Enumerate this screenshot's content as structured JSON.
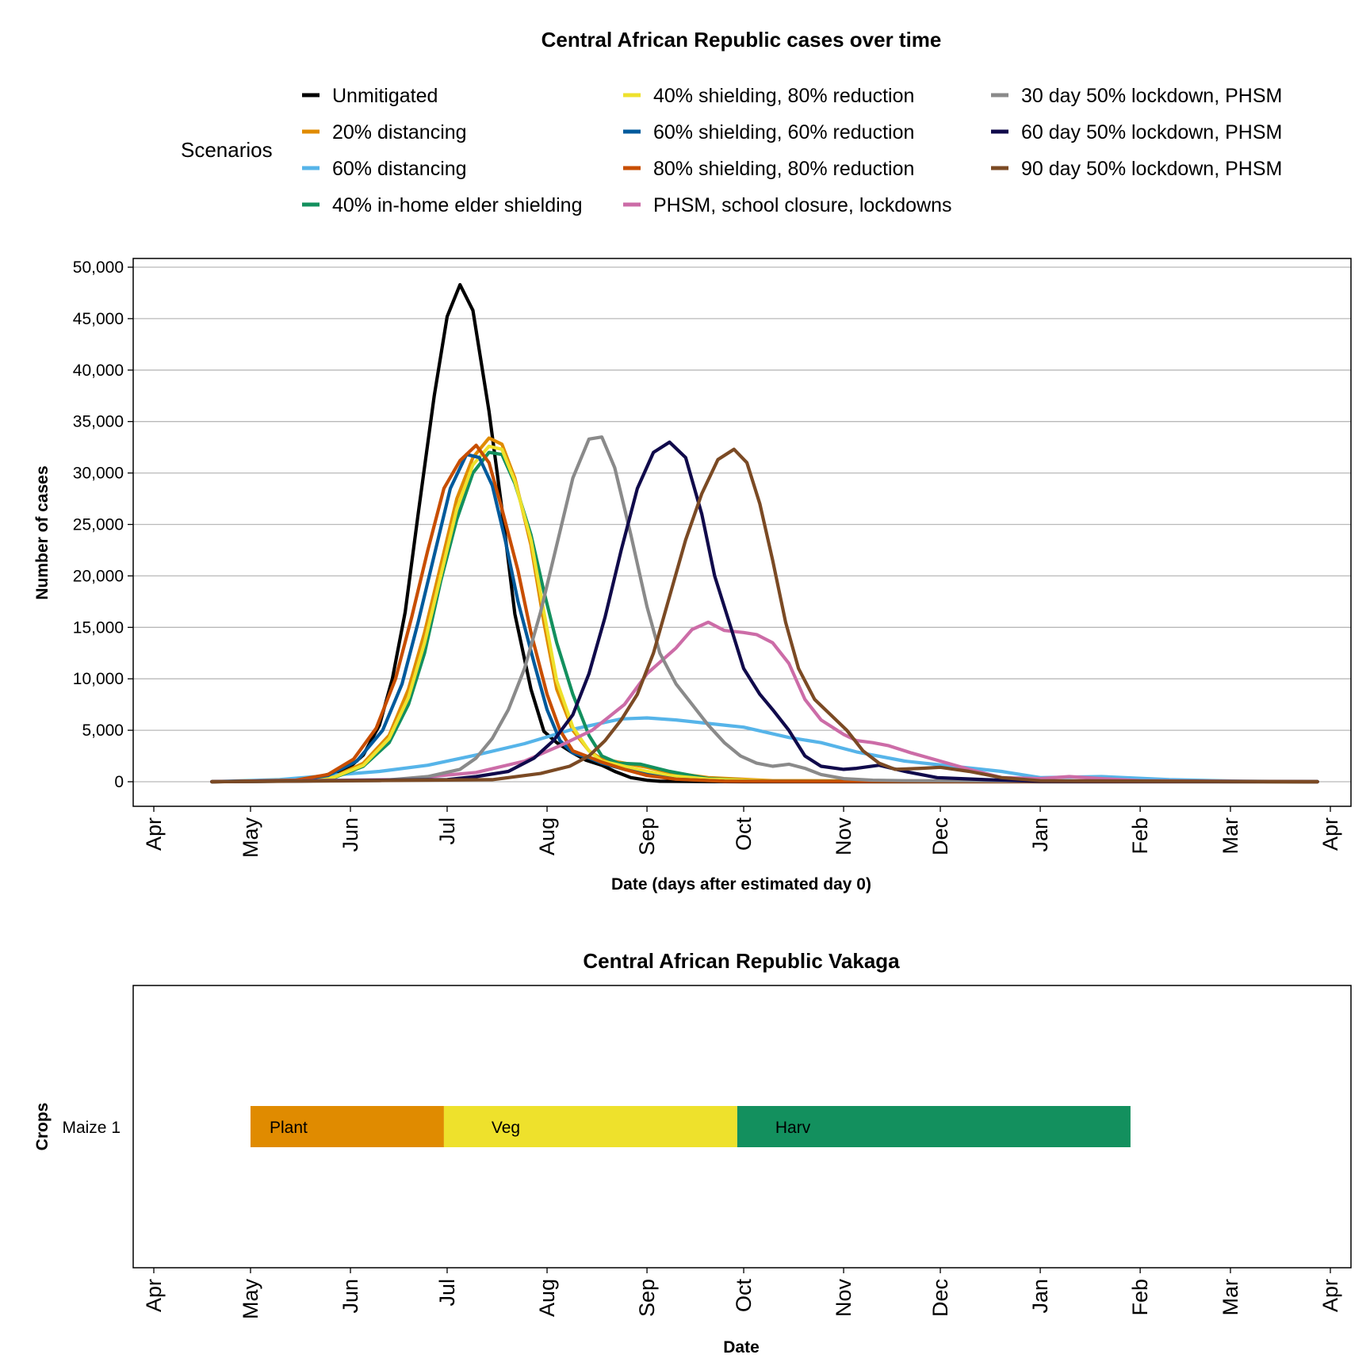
{
  "chart_data": [
    {
      "type": "line",
      "title": "Central African Republic cases over time",
      "xlabel": "Date (days after estimated day 0)",
      "ylabel": "Number of cases",
      "ylim": [
        0,
        50000
      ],
      "yticks": [
        0,
        5000,
        10000,
        15000,
        20000,
        25000,
        30000,
        35000,
        40000,
        45000,
        50000
      ],
      "ytick_labels": [
        "0",
        "5,000",
        "10,000",
        "15,000",
        "20,000",
        "25,000",
        "30,000",
        "35,000",
        "40,000",
        "45,000",
        "50,000"
      ],
      "x_start": "2020-04-01",
      "x_end": "2021-04-01",
      "x_ticks": [
        "2020-04-01",
        "2020-05-01",
        "2020-06-01",
        "2020-07-01",
        "2020-08-01",
        "2020-09-01",
        "2020-10-01",
        "2020-11-01",
        "2020-12-01",
        "2021-01-01",
        "2021-02-01",
        "2021-03-01",
        "2021-04-01"
      ],
      "x_tick_labels": [
        "Apr",
        "May",
        "Jun",
        "Jul",
        "Aug",
        "Sep",
        "Oct",
        "Nov",
        "Dec",
        "Jan",
        "Feb",
        "Mar",
        "Apr"
      ],
      "grid": true,
      "legend": {
        "title": "Scenarios",
        "position": "top",
        "columns": 3
      },
      "series": [
        {
          "name": "Unmitigated",
          "color": "#000000",
          "x": [
            "2020-04-19",
            "2020-05-10",
            "2020-05-20",
            "2020-05-31",
            "2020-06-05",
            "2020-06-10",
            "2020-06-14",
            "2020-06-18",
            "2020-06-22",
            "2020-06-27",
            "2020-07-01",
            "2020-07-05",
            "2020-07-09",
            "2020-07-14",
            "2020-07-18",
            "2020-07-22",
            "2020-07-27",
            "2020-07-31",
            "2020-08-04",
            "2020-08-09",
            "2020-08-13",
            "2020-08-18",
            "2020-08-22",
            "2020-08-27",
            "2020-09-01",
            "2020-09-05",
            "2020-09-15",
            "2020-10-01",
            "2020-10-15",
            "2021-03-28"
          ],
          "values": [
            0,
            50,
            300,
            1200,
            2600,
            5500,
            10000,
            16500,
            26000,
            37500,
            45200,
            48300,
            45800,
            36000,
            26500,
            16300,
            9000,
            4900,
            3800,
            2800,
            2100,
            1600,
            1000,
            400,
            150,
            50,
            20,
            0,
            0,
            0
          ]
        },
        {
          "name": "20% distancing",
          "color": "#E08B00",
          "x": [
            "2020-04-19",
            "2020-05-15",
            "2020-05-27",
            "2020-06-05",
            "2020-06-13",
            "2020-06-19",
            "2020-06-24",
            "2020-06-29",
            "2020-07-04",
            "2020-07-09",
            "2020-07-14",
            "2020-07-18",
            "2020-07-22",
            "2020-07-27",
            "2020-07-31",
            "2020-08-04",
            "2020-08-09",
            "2020-08-14",
            "2020-08-18",
            "2020-08-25",
            "2020-09-01",
            "2020-09-08",
            "2020-09-20",
            "2020-10-10",
            "2021-03-28"
          ],
          "values": [
            0,
            100,
            500,
            1800,
            4500,
            9000,
            14500,
            21000,
            27500,
            31500,
            33400,
            32800,
            29500,
            23000,
            15500,
            9000,
            5000,
            3000,
            2200,
            1800,
            1400,
            900,
            400,
            100,
            0
          ]
        },
        {
          "name": "60% distancing",
          "color": "#56B4E9",
          "x": [
            "2020-04-19",
            "2020-05-10",
            "2020-05-25",
            "2020-06-10",
            "2020-06-25",
            "2020-07-10",
            "2020-07-25",
            "2020-08-09",
            "2020-08-24",
            "2020-09-01",
            "2020-09-10",
            "2020-09-25",
            "2020-10-01",
            "2020-10-15",
            "2020-10-25",
            "2020-11-05",
            "2020-11-20",
            "2020-12-05",
            "2020-12-20",
            "2021-01-01",
            "2021-01-20",
            "2021-02-10",
            "2021-03-05",
            "2021-03-28"
          ],
          "values": [
            0,
            200,
            600,
            1000,
            1600,
            2600,
            3700,
            5100,
            6100,
            6200,
            6000,
            5500,
            5300,
            4300,
            3800,
            2900,
            2000,
            1500,
            1000,
            400,
            500,
            200,
            50,
            0
          ]
        },
        {
          "name": "40% in-home elder shielding",
          "color": "#13905E",
          "x": [
            "2020-04-19",
            "2020-05-15",
            "2020-05-27",
            "2020-06-05",
            "2020-06-13",
            "2020-06-19",
            "2020-06-24",
            "2020-06-29",
            "2020-07-04",
            "2020-07-09",
            "2020-07-14",
            "2020-07-18",
            "2020-07-22",
            "2020-07-27",
            "2020-07-31",
            "2020-08-04",
            "2020-08-09",
            "2020-08-14",
            "2020-08-18",
            "2020-08-23",
            "2020-08-30",
            "2020-09-08",
            "2020-09-20",
            "2020-10-05",
            "2021-03-28"
          ],
          "values": [
            0,
            80,
            400,
            1500,
            3800,
            7500,
            12500,
            19500,
            25500,
            30000,
            32000,
            31800,
            29000,
            24000,
            18500,
            13500,
            8500,
            4500,
            2500,
            1800,
            1700,
            1000,
            300,
            80,
            0
          ]
        },
        {
          "name": "40% shielding, 80% reduction",
          "color": "#EEE12C",
          "x": [
            "2020-04-19",
            "2020-05-15",
            "2020-05-27",
            "2020-06-05",
            "2020-06-13",
            "2020-06-19",
            "2020-06-24",
            "2020-06-29",
            "2020-07-04",
            "2020-07-09",
            "2020-07-14",
            "2020-07-18",
            "2020-07-22",
            "2020-07-27",
            "2020-07-31",
            "2020-08-04",
            "2020-08-09",
            "2020-08-14",
            "2020-08-18",
            "2020-08-25",
            "2020-09-01",
            "2020-09-08",
            "2020-09-20",
            "2020-10-10",
            "2021-03-28"
          ],
          "values": [
            0,
            90,
            450,
            1600,
            4200,
            8200,
            13500,
            20000,
            26500,
            30800,
            32600,
            32300,
            29200,
            23500,
            16500,
            9800,
            5300,
            3000,
            2000,
            1500,
            1000,
            600,
            250,
            60,
            0
          ]
        },
        {
          "name": "60% shielding, 60% reduction",
          "color": "#005A9C",
          "x": [
            "2020-04-19",
            "2020-05-15",
            "2020-05-25",
            "2020-06-03",
            "2020-06-11",
            "2020-06-17",
            "2020-06-22",
            "2020-06-27",
            "2020-07-02",
            "2020-07-07",
            "2020-07-11",
            "2020-07-15",
            "2020-07-19",
            "2020-07-23",
            "2020-07-28",
            "2020-08-01",
            "2020-08-05",
            "2020-08-09",
            "2020-08-14",
            "2020-08-18",
            "2020-08-25",
            "2020-09-01",
            "2020-09-10",
            "2020-09-25",
            "2021-03-28"
          ],
          "values": [
            0,
            120,
            600,
            2000,
            5000,
            9500,
            15500,
            22000,
            28500,
            31800,
            31500,
            28800,
            23500,
            17500,
            11500,
            7000,
            4000,
            2800,
            2300,
            1800,
            1200,
            700,
            250,
            50,
            0
          ]
        },
        {
          "name": "80% shielding, 80% reduction",
          "color": "#C84E00",
          "x": [
            "2020-04-19",
            "2020-05-15",
            "2020-05-25",
            "2020-06-02",
            "2020-06-09",
            "2020-06-15",
            "2020-06-20",
            "2020-06-25",
            "2020-06-30",
            "2020-07-05",
            "2020-07-10",
            "2020-07-14",
            "2020-07-18",
            "2020-07-23",
            "2020-07-27",
            "2020-08-01",
            "2020-08-05",
            "2020-08-09",
            "2020-08-14",
            "2020-08-18",
            "2020-08-25",
            "2020-09-01",
            "2020-09-10",
            "2020-09-25",
            "2021-03-28"
          ],
          "values": [
            0,
            150,
            700,
            2200,
            5200,
            10000,
            16000,
            22500,
            28500,
            31200,
            32700,
            31000,
            26500,
            20500,
            14500,
            8500,
            5000,
            3000,
            2400,
            1900,
            1200,
            600,
            250,
            50,
            0
          ]
        },
        {
          "name": "PHSM, school closure, lockdowns",
          "color": "#CC6CA7",
          "x": [
            "2020-04-19",
            "2020-06-15",
            "2020-07-10",
            "2020-07-25",
            "2020-08-05",
            "2020-08-15",
            "2020-08-25",
            "2020-09-01",
            "2020-09-10",
            "2020-09-15",
            "2020-09-20",
            "2020-09-25",
            "2020-10-01",
            "2020-10-05",
            "2020-10-10",
            "2020-10-15",
            "2020-10-20",
            "2020-10-25",
            "2020-11-01",
            "2020-11-05",
            "2020-11-10",
            "2020-11-15",
            "2020-11-22",
            "2020-12-01",
            "2020-12-10",
            "2020-12-20",
            "2021-01-01",
            "2021-01-10",
            "2021-01-20",
            "2021-02-01",
            "2021-03-28"
          ],
          "values": [
            0,
            200,
            900,
            2000,
            3500,
            5000,
            7500,
            10500,
            13000,
            14800,
            15500,
            14700,
            14500,
            14300,
            13500,
            11500,
            8000,
            6000,
            4600,
            4000,
            3800,
            3500,
            2800,
            2000,
            1200,
            400,
            300,
            500,
            300,
            100,
            0
          ]
        },
        {
          "name": "30 day 50% lockdown, PHSM",
          "color": "#8A8A8A",
          "x": [
            "2020-04-19",
            "2020-06-10",
            "2020-06-25",
            "2020-07-05",
            "2020-07-10",
            "2020-07-15",
            "2020-07-20",
            "2020-07-25",
            "2020-07-30",
            "2020-08-04",
            "2020-08-09",
            "2020-08-14",
            "2020-08-18",
            "2020-08-22",
            "2020-08-27",
            "2020-09-01",
            "2020-09-05",
            "2020-09-10",
            "2020-09-15",
            "2020-09-20",
            "2020-09-25",
            "2020-09-30",
            "2020-10-05",
            "2020-10-10",
            "2020-10-15",
            "2020-10-20",
            "2020-10-25",
            "2020-11-01",
            "2020-11-10",
            "2020-11-20",
            "2021-03-28"
          ],
          "values": [
            0,
            100,
            500,
            1200,
            2300,
            4200,
            7000,
            11000,
            16500,
            23000,
            29500,
            33300,
            33500,
            30500,
            24000,
            17000,
            12500,
            9500,
            7500,
            5500,
            3800,
            2500,
            1800,
            1500,
            1700,
            1300,
            700,
            300,
            150,
            100,
            0
          ]
        },
        {
          "name": "60 day 50% lockdown, PHSM",
          "color": "#100A4B",
          "x": [
            "2020-04-19",
            "2020-07-01",
            "2020-07-10",
            "2020-07-20",
            "2020-07-28",
            "2020-08-03",
            "2020-08-09",
            "2020-08-14",
            "2020-08-19",
            "2020-08-24",
            "2020-08-29",
            "2020-09-03",
            "2020-09-08",
            "2020-09-13",
            "2020-09-18",
            "2020-09-22",
            "2020-09-27",
            "2020-10-01",
            "2020-10-06",
            "2020-10-10",
            "2020-10-15",
            "2020-10-20",
            "2020-10-25",
            "2020-11-01",
            "2020-11-05",
            "2020-11-12",
            "2020-11-20",
            "2020-11-30",
            "2020-12-15",
            "2021-01-01",
            "2021-03-28"
          ],
          "values": [
            0,
            200,
            500,
            1000,
            2300,
            4000,
            6500,
            10500,
            16000,
            22500,
            28500,
            32000,
            33000,
            31500,
            26000,
            20000,
            15000,
            11000,
            8500,
            7000,
            5000,
            2500,
            1500,
            1200,
            1300,
            1600,
            1000,
            400,
            200,
            50,
            0
          ]
        },
        {
          "name": "90 day 50% lockdown, PHSM",
          "color": "#7B4A24",
          "x": [
            "2020-04-19",
            "2020-07-15",
            "2020-07-30",
            "2020-08-08",
            "2020-08-14",
            "2020-08-19",
            "2020-08-24",
            "2020-08-29",
            "2020-09-03",
            "2020-09-08",
            "2020-09-13",
            "2020-09-18",
            "2020-09-23",
            "2020-09-28",
            "2020-10-02",
            "2020-10-06",
            "2020-10-10",
            "2020-10-14",
            "2020-10-18",
            "2020-10-23",
            "2020-10-28",
            "2020-11-02",
            "2020-11-07",
            "2020-11-12",
            "2020-11-17",
            "2020-11-25",
            "2020-12-01",
            "2020-12-10",
            "2020-12-20",
            "2021-01-01",
            "2021-03-28"
          ],
          "values": [
            0,
            200,
            800,
            1500,
            2500,
            4000,
            6000,
            8500,
            12500,
            18000,
            23500,
            28000,
            31300,
            32300,
            31000,
            27000,
            21500,
            15500,
            11000,
            8000,
            6500,
            5000,
            3000,
            1800,
            1200,
            1300,
            1400,
            1000,
            400,
            100,
            0
          ]
        }
      ]
    },
    {
      "type": "gantt",
      "title": "Central African Republic Vakaga",
      "xlabel": "Date",
      "ylabel": "Crops",
      "x_start": "2020-04-01",
      "x_end": "2021-04-01",
      "x_ticks": [
        "2020-04-01",
        "2020-05-01",
        "2020-06-01",
        "2020-07-01",
        "2020-08-01",
        "2020-09-01",
        "2020-10-01",
        "2020-11-01",
        "2020-12-01",
        "2021-01-01",
        "2021-02-01",
        "2021-03-01",
        "2021-04-01"
      ],
      "x_tick_labels": [
        "Apr",
        "May",
        "Jun",
        "Jul",
        "Aug",
        "Sep",
        "Oct",
        "Nov",
        "Dec",
        "Jan",
        "Feb",
        "Mar",
        "Apr"
      ],
      "crop": "Maize 1",
      "segments": [
        {
          "label": "Plant",
          "start": "2020-05-01",
          "end": "2020-06-30",
          "color": "#E08B00"
        },
        {
          "label": "Veg",
          "start": "2020-06-30",
          "end": "2020-09-29",
          "color": "#EEE12C"
        },
        {
          "label": "Harv",
          "start": "2020-09-29",
          "end": "2021-01-29",
          "color": "#13905E"
        }
      ]
    }
  ]
}
